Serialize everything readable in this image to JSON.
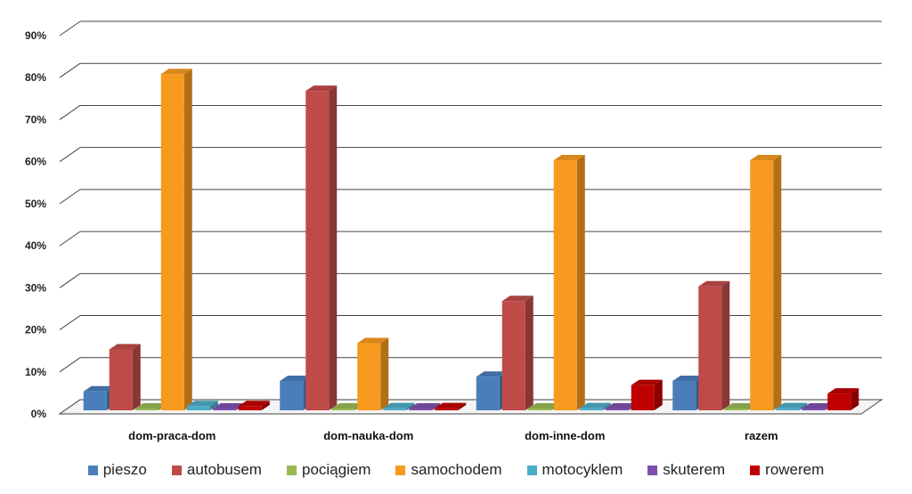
{
  "chart_data": {
    "type": "bar",
    "title": "",
    "xlabel": "",
    "ylabel": "",
    "ylim": [
      0,
      90
    ],
    "yticks": [
      "0%",
      "10%",
      "20%",
      "30%",
      "40%",
      "50%",
      "60%",
      "70%",
      "80%",
      "90%"
    ],
    "grid": true,
    "legend_position": "bottom",
    "categories": [
      "dom-praca-dom",
      "dom-nauka-dom",
      "dom-inne-dom",
      "razem"
    ],
    "series": [
      {
        "name": "pieszo",
        "color": "#4A7EBB",
        "values": [
          4.5,
          7,
          8,
          7
        ]
      },
      {
        "name": "autobusem",
        "color": "#BE4B48",
        "values": [
          14.5,
          76,
          26,
          29.5
        ]
      },
      {
        "name": "pociągiem",
        "color": "#98B954",
        "values": [
          0.2,
          0.2,
          0.2,
          0.2
        ]
      },
      {
        "name": "samochodem",
        "color": "#F79A1F",
        "values": [
          80,
          16,
          59.5,
          59.5
        ]
      },
      {
        "name": "motocyklem",
        "color": "#4BACC6",
        "values": [
          1,
          0.5,
          0.5,
          0.5
        ]
      },
      {
        "name": "skuterem",
        "color": "#7F4FAE",
        "values": [
          0.3,
          0.3,
          0.3,
          0.3
        ]
      },
      {
        "name": "rowerem",
        "color": "#C00000",
        "values": [
          1,
          0.5,
          6,
          4
        ]
      }
    ]
  }
}
